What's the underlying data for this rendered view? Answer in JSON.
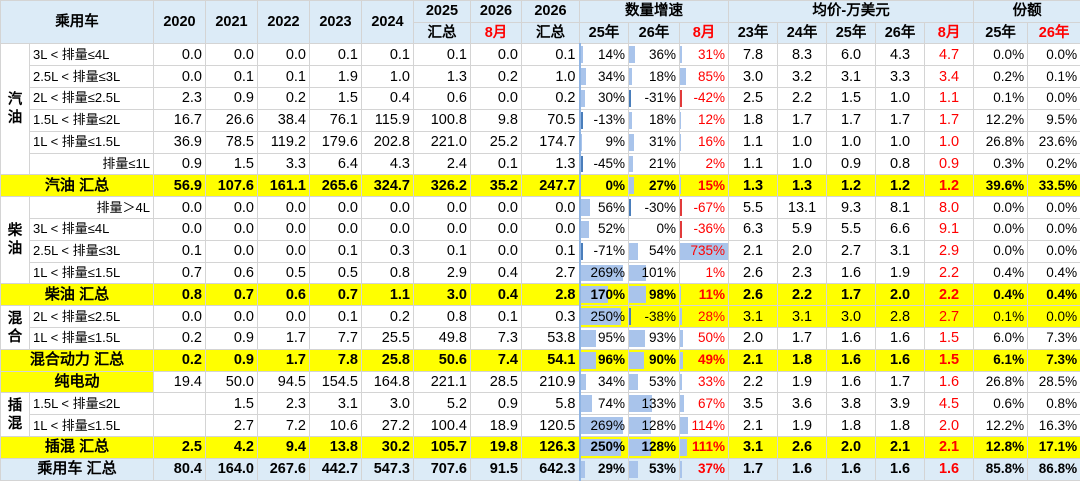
{
  "header": {
    "corner": "乘用车",
    "years": [
      "2020",
      "2021",
      "2022",
      "2023",
      "2024"
    ],
    "y2025_top": "2025",
    "y2025_sub": "汇总",
    "y2026a_top": "2026",
    "y2026a_sub": "8月",
    "y2026b_top": "2026",
    "y2026b_sub": "汇总",
    "growth_title": "数量增速",
    "growth_cols": [
      "25年",
      "26年",
      "8月"
    ],
    "price_title": "均价-万美元",
    "price_cols": [
      "23年",
      "24年",
      "25年",
      "26年",
      "8月"
    ],
    "share_title": "份额",
    "share_cols": [
      "25年",
      "26年"
    ]
  },
  "groups": {
    "gasoline": "汽\n油",
    "diesel": "柴\n油",
    "hybrid": "混\n合",
    "phev": "插\n混"
  },
  "rows": [
    {
      "label": "3L < 排量≤4L",
      "v": [
        "0.0",
        "0.0",
        "0.0",
        "0.1",
        "0.1",
        "0.1",
        "0.0",
        "0.1"
      ],
      "g": [
        "14%",
        "36%",
        "31%"
      ],
      "p": [
        "7.8",
        "8.3",
        "6.0",
        "4.3",
        "4.7"
      ],
      "s": [
        "0.0%",
        "0.0%"
      ]
    },
    {
      "label": "2.5L < 排量≤3L",
      "v": [
        "0.0",
        "0.1",
        "0.1",
        "1.9",
        "1.0",
        "1.3",
        "0.2",
        "1.0"
      ],
      "g": [
        "34%",
        "18%",
        "85%"
      ],
      "p": [
        "3.0",
        "3.2",
        "3.1",
        "3.3",
        "3.4"
      ],
      "s": [
        "0.2%",
        "0.1%"
      ]
    },
    {
      "label": "2L < 排量≤2.5L",
      "v": [
        "2.3",
        "0.9",
        "0.2",
        "1.5",
        "0.4",
        "0.6",
        "0.0",
        "0.2"
      ],
      "g": [
        "30%",
        "-31%",
        "-42%"
      ],
      "p": [
        "2.5",
        "2.2",
        "1.5",
        "1.0",
        "1.1"
      ],
      "s": [
        "0.1%",
        "0.0%"
      ]
    },
    {
      "label": "1.5L < 排量≤2L",
      "v": [
        "16.7",
        "26.6",
        "38.4",
        "76.1",
        "115.9",
        "100.8",
        "9.8",
        "70.5"
      ],
      "g": [
        "-13%",
        "18%",
        "12%"
      ],
      "p": [
        "1.8",
        "1.7",
        "1.7",
        "1.7",
        "1.7"
      ],
      "s": [
        "12.2%",
        "9.5%"
      ]
    },
    {
      "label": "1L < 排量≤1.5L",
      "v": [
        "36.9",
        "78.5",
        "119.2",
        "179.6",
        "202.8",
        "221.0",
        "25.2",
        "174.7"
      ],
      "g": [
        "9%",
        "31%",
        "16%"
      ],
      "p": [
        "1.1",
        "1.0",
        "1.0",
        "1.0",
        "1.0"
      ],
      "s": [
        "26.8%",
        "23.6%"
      ]
    },
    {
      "label": "排量≤1L",
      "v": [
        "0.9",
        "1.5",
        "3.3",
        "6.4",
        "4.3",
        "2.4",
        "0.1",
        "1.3"
      ],
      "g": [
        "-45%",
        "21%",
        "2%"
      ],
      "p": [
        "1.1",
        "1.0",
        "0.9",
        "0.8",
        "0.9"
      ],
      "s": [
        "0.3%",
        "0.2%"
      ]
    },
    {
      "label": "汽油 汇总",
      "v": [
        "56.9",
        "107.6",
        "161.1",
        "265.6",
        "324.7",
        "326.2",
        "35.2",
        "247.7"
      ],
      "g": [
        "0%",
        "27%",
        "15%"
      ],
      "p": [
        "1.3",
        "1.3",
        "1.2",
        "1.2",
        "1.2"
      ],
      "s": [
        "39.6%",
        "33.5%"
      ]
    },
    {
      "label": "排量＞4L",
      "v": [
        "0.0",
        "0.0",
        "0.0",
        "0.0",
        "0.0",
        "0.0",
        "0.0",
        "0.0"
      ],
      "g": [
        "56%",
        "-30%",
        "-67%"
      ],
      "p": [
        "5.5",
        "13.1",
        "9.3",
        "8.1",
        "8.0"
      ],
      "s": [
        "0.0%",
        "0.0%"
      ]
    },
    {
      "label": "3L < 排量≤4L",
      "v": [
        "0.0",
        "0.0",
        "0.0",
        "0.0",
        "0.0",
        "0.0",
        "0.0",
        "0.0"
      ],
      "g": [
        "52%",
        "0%",
        "-36%"
      ],
      "p": [
        "6.3",
        "5.9",
        "5.5",
        "6.6",
        "9.1"
      ],
      "s": [
        "0.0%",
        "0.0%"
      ]
    },
    {
      "label": "2.5L < 排量≤3L",
      "v": [
        "0.1",
        "0.0",
        "0.0",
        "0.1",
        "0.3",
        "0.1",
        "0.0",
        "0.1"
      ],
      "g": [
        "-71%",
        "54%",
        "735%"
      ],
      "p": [
        "2.1",
        "2.0",
        "2.7",
        "3.1",
        "2.9"
      ],
      "s": [
        "0.0%",
        "0.0%"
      ]
    },
    {
      "label": "1L < 排量≤1.5L",
      "v": [
        "0.7",
        "0.6",
        "0.5",
        "0.5",
        "0.8",
        "2.9",
        "0.4",
        "2.7"
      ],
      "g": [
        "269%",
        "101%",
        "1%"
      ],
      "p": [
        "2.6",
        "2.3",
        "1.6",
        "1.9",
        "2.2"
      ],
      "s": [
        "0.4%",
        "0.4%"
      ]
    },
    {
      "label": "柴油 汇总",
      "v": [
        "0.8",
        "0.7",
        "0.6",
        "0.7",
        "1.1",
        "3.0",
        "0.4",
        "2.8"
      ],
      "g": [
        "170%",
        "98%",
        "11%"
      ],
      "p": [
        "2.6",
        "2.2",
        "1.7",
        "2.0",
        "2.2"
      ],
      "s": [
        "0.4%",
        "0.4%"
      ]
    },
    {
      "label": "2L < 排量≤2.5L",
      "v": [
        "0.0",
        "0.0",
        "0.0",
        "0.1",
        "0.2",
        "0.8",
        "0.1",
        "0.3"
      ],
      "g": [
        "250%",
        "-38%",
        "28%"
      ],
      "p": [
        "3.1",
        "3.1",
        "3.0",
        "2.8",
        "2.7"
      ],
      "s": [
        "0.1%",
        "0.0%"
      ]
    },
    {
      "label": "1L < 排量≤1.5L",
      "v": [
        "0.2",
        "0.9",
        "1.7",
        "7.7",
        "25.5",
        "49.8",
        "7.3",
        "53.8"
      ],
      "g": [
        "95%",
        "93%",
        "50%"
      ],
      "p": [
        "2.0",
        "1.7",
        "1.6",
        "1.6",
        "1.5"
      ],
      "s": [
        "6.0%",
        "7.3%"
      ]
    },
    {
      "label": "混合动力 汇总",
      "v": [
        "0.2",
        "0.9",
        "1.7",
        "7.8",
        "25.8",
        "50.6",
        "7.4",
        "54.1"
      ],
      "g": [
        "96%",
        "90%",
        "49%"
      ],
      "p": [
        "2.1",
        "1.8",
        "1.6",
        "1.6",
        "1.5"
      ],
      "s": [
        "6.1%",
        "7.3%"
      ]
    },
    {
      "label": "纯电动",
      "v": [
        "19.4",
        "50.0",
        "94.5",
        "154.5",
        "164.8",
        "221.1",
        "28.5",
        "210.9"
      ],
      "g": [
        "34%",
        "53%",
        "33%"
      ],
      "p": [
        "2.2",
        "1.9",
        "1.6",
        "1.7",
        "1.6"
      ],
      "s": [
        "26.8%",
        "28.5%"
      ]
    },
    {
      "label": "1.5L < 排量≤2L",
      "v": [
        "",
        "1.5",
        "2.3",
        "3.1",
        "3.0",
        "5.2",
        "0.9",
        "5.8"
      ],
      "g": [
        "74%",
        "133%",
        "67%"
      ],
      "p": [
        "3.5",
        "3.6",
        "3.8",
        "3.9",
        "4.5"
      ],
      "s": [
        "0.6%",
        "0.8%"
      ]
    },
    {
      "label": "1L < 排量≤1.5L",
      "v": [
        "",
        "2.7",
        "7.2",
        "10.6",
        "27.2",
        "100.4",
        "18.9",
        "120.5"
      ],
      "g": [
        "269%",
        "128%",
        "114%"
      ],
      "p": [
        "2.1",
        "1.9",
        "1.8",
        "1.8",
        "2.0"
      ],
      "s": [
        "12.2%",
        "16.3%"
      ]
    },
    {
      "label": "插混 汇总",
      "v": [
        "2.5",
        "4.2",
        "9.4",
        "13.8",
        "30.2",
        "105.7",
        "19.8",
        "126.3"
      ],
      "g": [
        "250%",
        "128%",
        "111%"
      ],
      "p": [
        "3.1",
        "2.6",
        "2.0",
        "2.1",
        "2.1"
      ],
      "s": [
        "12.8%",
        "17.1%"
      ]
    },
    {
      "label": "乘用车 汇总",
      "v": [
        "80.4",
        "164.0",
        "267.6",
        "442.7",
        "547.3",
        "707.6",
        "91.5",
        "642.3"
      ],
      "g": [
        "29%",
        "53%",
        "37%"
      ],
      "p": [
        "1.7",
        "1.6",
        "1.6",
        "1.6",
        "1.6"
      ],
      "s": [
        "85.8%",
        "86.8%"
      ]
    }
  ],
  "growth_bars": {
    "g25": [
      0.05,
      0.12,
      0.1,
      0,
      0.03,
      0,
      0,
      0.19,
      0.17,
      0,
      0.9,
      0.57,
      0.85,
      0.32,
      0.33,
      0.12,
      0.25,
      0.9,
      0.85,
      0.1
    ],
    "g26": [
      0.12,
      0.06,
      0,
      0.06,
      0.1,
      0.07,
      0.09,
      0,
      0,
      0.18,
      0.34,
      0.33,
      0,
      0.31,
      0.3,
      0.18,
      0.45,
      0.43,
      0.43,
      0.18
    ],
    "g8": [
      0.04,
      0.12,
      0,
      0.02,
      0.02,
      0,
      0.02,
      0,
      0,
      1.0,
      0,
      0.01,
      0.04,
      0.07,
      0.07,
      0.05,
      0.09,
      0.16,
      0.15,
      0.05
    ]
  },
  "colors": {
    "highlight_yellow": "#ffff00",
    "header_blue": "#dcebf7",
    "negative_red": "#ff0000",
    "bar_blue": "#a9c4eb"
  }
}
